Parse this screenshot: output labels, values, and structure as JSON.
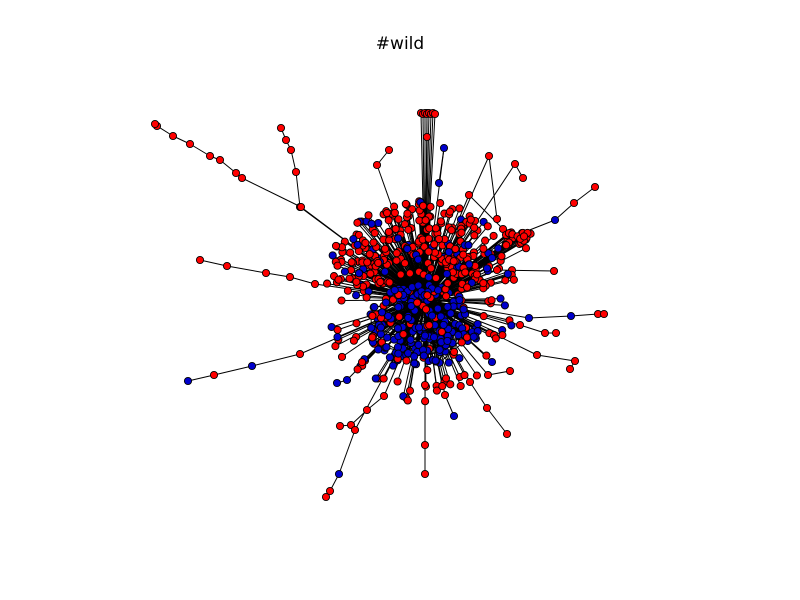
{
  "title": "#wild",
  "colors": {
    "node_a": "#ff0000",
    "node_b": "#0000cc",
    "edge": "#000000",
    "node_outline": "#000000",
    "background": "#ffffff"
  },
  "chart_data": {
    "type": "network",
    "title": "#wild",
    "legend": "none",
    "axes": "none",
    "node_groups": [
      {
        "color": "#ff0000",
        "approx_count": 560
      },
      {
        "color": "#0000cc",
        "approx_count": 220
      }
    ]
  }
}
